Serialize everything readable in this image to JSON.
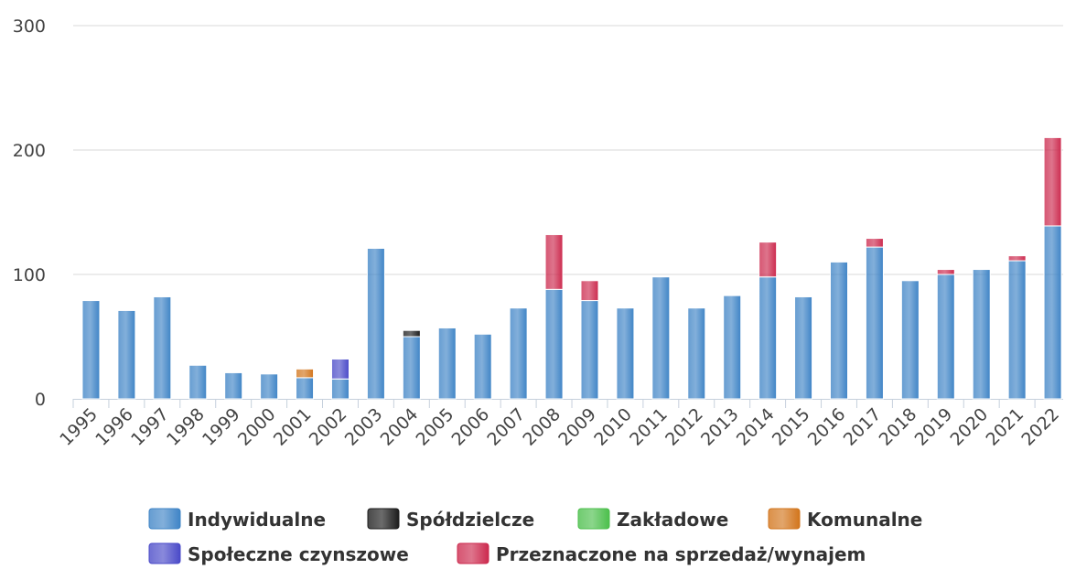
{
  "chart_data": {
    "type": "stacked_bar",
    "categories": [
      "1995",
      "1996",
      "1997",
      "1998",
      "1999",
      "2000",
      "2001",
      "2002",
      "2003",
      "2004",
      "2005",
      "2006",
      "2007",
      "2008",
      "2009",
      "2010",
      "2011",
      "2012",
      "2013",
      "2014",
      "2015",
      "2016",
      "2017",
      "2018",
      "2019",
      "2020",
      "2021",
      "2022"
    ],
    "series": [
      {
        "name": "Indywidualne",
        "color": "#3f84c6",
        "values": [
          79,
          71,
          82,
          27,
          21,
          20,
          17,
          16,
          121,
          50,
          57,
          52,
          73,
          88,
          79,
          73,
          98,
          73,
          83,
          98,
          82,
          110,
          122,
          95,
          100,
          104,
          111,
          139
        ]
      },
      {
        "name": "Spółdzielcze",
        "color": "#1c1c1c",
        "values": [
          0,
          0,
          0,
          0,
          0,
          0,
          0,
          0,
          0,
          5,
          0,
          0,
          0,
          0,
          0,
          0,
          0,
          0,
          0,
          0,
          0,
          0,
          0,
          0,
          0,
          0,
          0,
          0
        ]
      },
      {
        "name": "Zakładowe",
        "color": "#4cbf4c",
        "values": [
          0,
          0,
          0,
          0,
          0,
          0,
          0,
          0,
          0,
          0,
          0,
          0,
          0,
          0,
          0,
          0,
          0,
          0,
          0,
          0,
          0,
          0,
          0,
          0,
          0,
          0,
          0,
          0
        ]
      },
      {
        "name": "Komunalne",
        "color": "#d2751c",
        "values": [
          0,
          0,
          0,
          0,
          0,
          0,
          7,
          0,
          0,
          0,
          0,
          0,
          0,
          0,
          0,
          0,
          0,
          0,
          0,
          0,
          0,
          0,
          0,
          0,
          0,
          0,
          0,
          0
        ]
      },
      {
        "name": "Społeczne czynszowe",
        "color": "#4a4ac8",
        "values": [
          0,
          0,
          0,
          0,
          0,
          0,
          0,
          16,
          0,
          0,
          0,
          0,
          0,
          0,
          0,
          0,
          0,
          0,
          0,
          0,
          0,
          0,
          0,
          0,
          0,
          0,
          0,
          0
        ]
      },
      {
        "name": "Przeznaczone na sprzedaż/wynajem",
        "color": "#cc2a4e",
        "values": [
          0,
          0,
          0,
          0,
          0,
          0,
          0,
          0,
          0,
          0,
          0,
          0,
          0,
          44,
          16,
          0,
          0,
          0,
          0,
          28,
          0,
          0,
          7,
          0,
          4,
          0,
          4,
          71
        ]
      }
    ],
    "ylim": [
      0,
      300
    ],
    "yticks": [
      0,
      100,
      200,
      300
    ],
    "grid": true
  }
}
